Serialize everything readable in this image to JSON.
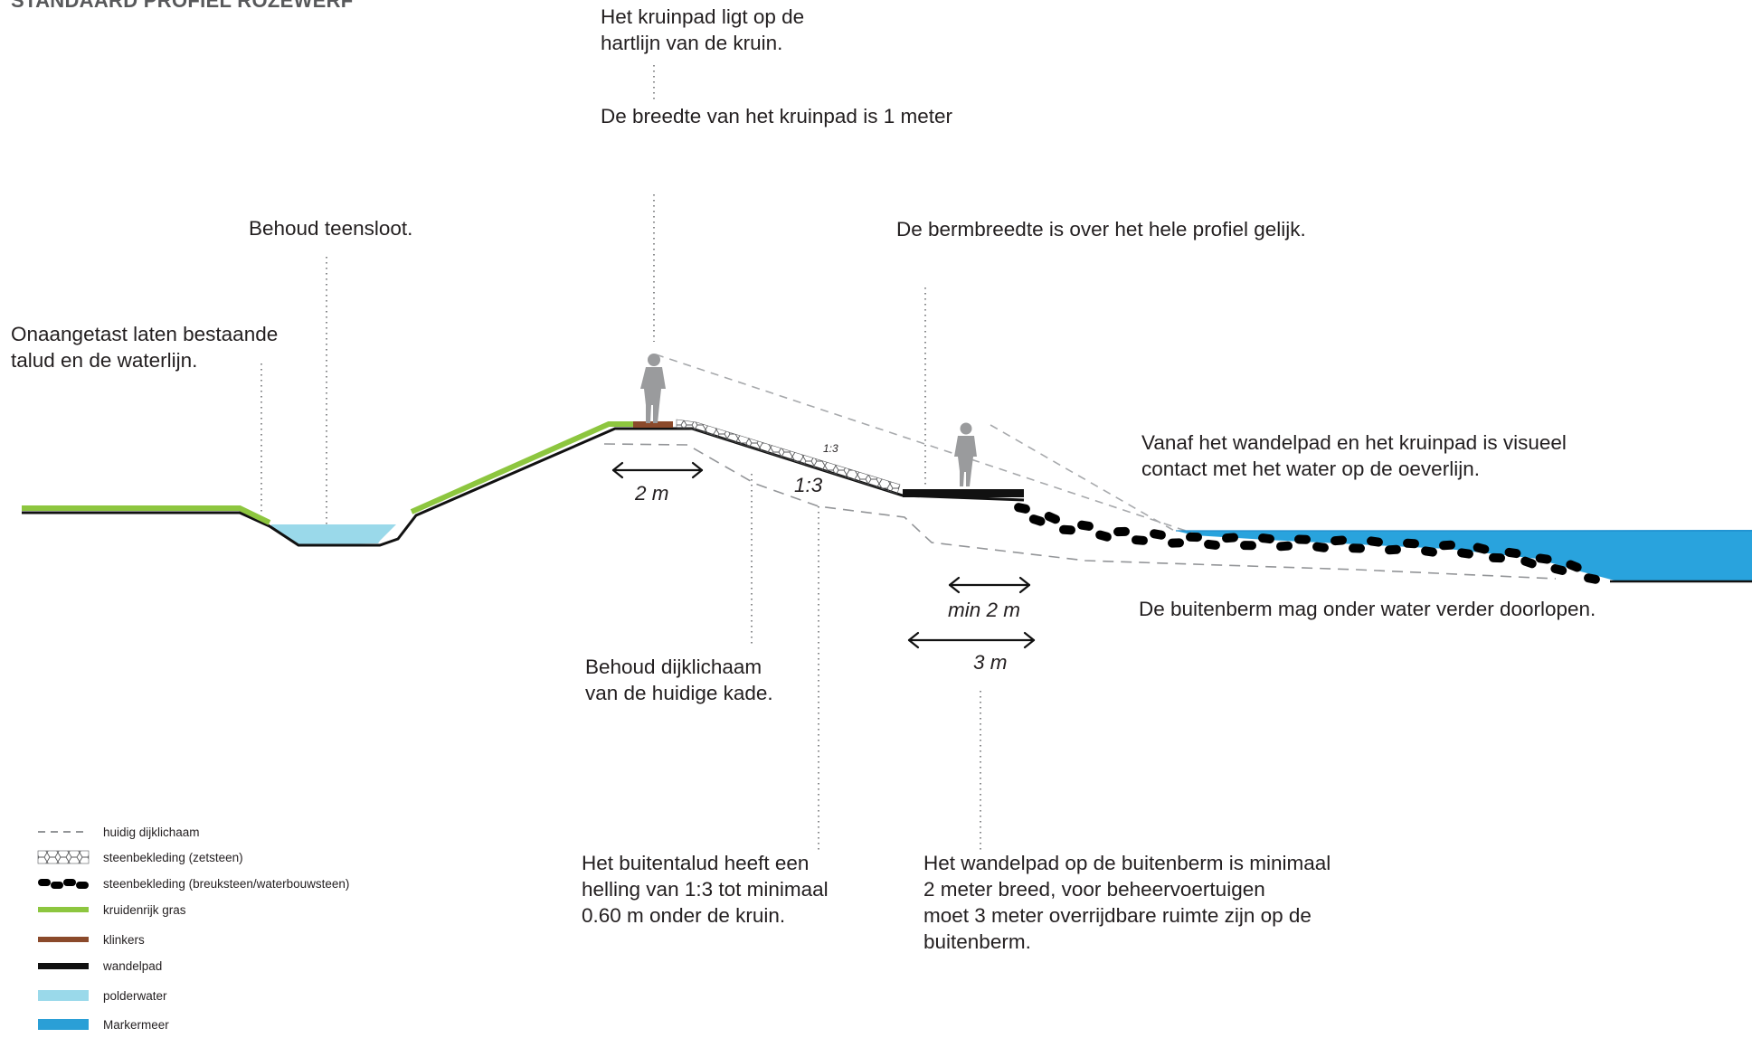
{
  "title": "STANDAARD PROFIEL ROZEWERF",
  "annotations": {
    "kruinpad_line1": "Het kruinpad ligt op de",
    "kruinpad_line2": "hartlijn van de kruin.",
    "kruinpad_width": "De breedte van het kruinpad is 1 meter",
    "teensloot": "Behoud teensloot.",
    "bermbreedte": "De bermbreedte is over het hele profiel gelijk.",
    "talud_line1": "Onaangetast laten bestaande",
    "talud_line2": "talud en de waterlijn.",
    "visueel_line1": "Vanaf het wandelpad en het kruinpad is visueel",
    "visueel_line2": "contact met het water op de oeverlijn.",
    "buitenberm": "De buitenberm mag onder water verder doorlopen.",
    "dijklichaam_line1": "Behoud dijklichaam",
    "dijklichaam_line2": "van de huidige kade.",
    "buitentalud_line1": "Het buitentalud heeft een",
    "buitentalud_line2": "helling van 1:3 tot minimaal",
    "buitentalud_line3": "0.60 m onder de kruin.",
    "wandelpad_line1": "Het wandelpad op de buitenberm is minimaal",
    "wandelpad_line2": "2 meter breed, voor beheervoertuigen",
    "wandelpad_line3": "moet 3 meter overrijdbare ruimte zijn op de",
    "wandelpad_line4": "buitenberm."
  },
  "dimensions": {
    "kruin_width": "2 m",
    "slope_label": "1:3",
    "slope_label_small": "1:3",
    "pad_min_width": "min 2 m",
    "berm_width": "3 m"
  },
  "legend": [
    {
      "label": "huidig dijklichaam",
      "style": "dashed",
      "color": "#939598"
    },
    {
      "label": "steenbekleding (zetsteen)",
      "style": "hatch",
      "color": "#58595b"
    },
    {
      "label": "steenbekleding (breuksteen/waterbouwsteen)",
      "style": "stones",
      "color": "#000000"
    },
    {
      "label": "kruidenrijk gras",
      "style": "line",
      "color": "#8dc63f"
    },
    {
      "label": "klinkers",
      "style": "line",
      "color": "#8b4a2b"
    },
    {
      "label": "wandelpad",
      "style": "line",
      "color": "#111111"
    },
    {
      "label": "polderwater",
      "style": "fill",
      "color": "#9ad9ea"
    },
    {
      "label": "Markermeer",
      "style": "fill",
      "color": "#2a9fd6"
    }
  ],
  "colors": {
    "grass": "#8dc63f",
    "klinkers": "#8b4a2b",
    "wandelpad": "#111111",
    "polderwater": "#9ad9ea",
    "markermeer": "#29a3dd",
    "current_dike": "#939598"
  }
}
